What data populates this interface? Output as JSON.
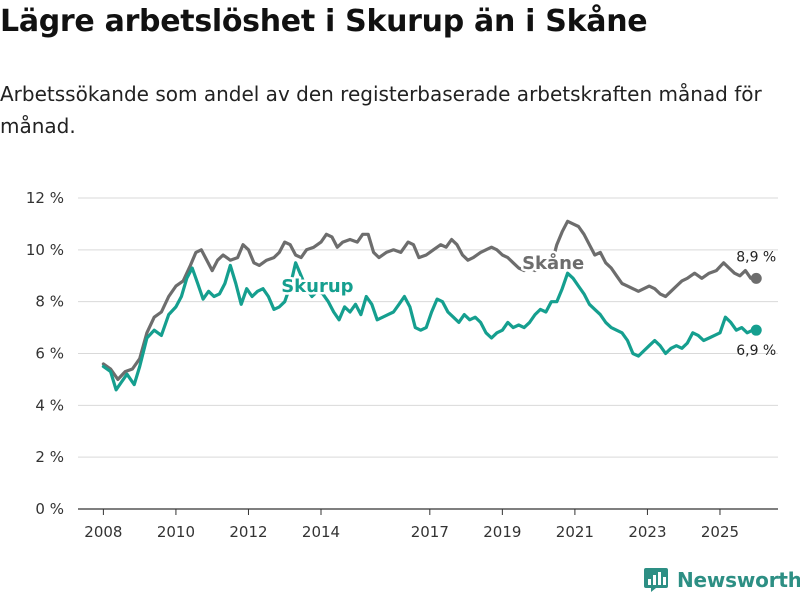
{
  "title": "Lägre arbetslöshet i Skurup än i Skåne",
  "subtitle": "Arbetssökande som andel av den registerbaserade arbetskraften månad för månad.",
  "brand": {
    "name": "Newsworthy",
    "icon": "bar-chart-logo-icon",
    "color": "#2d8f84"
  },
  "chart_data": {
    "type": "line",
    "title": "",
    "xlabel": "",
    "ylabel": "",
    "ylim": [
      0,
      12
    ],
    "xlim": [
      2007.3,
      2026.6
    ],
    "y_ticks": [
      0,
      2,
      4,
      6,
      8,
      10,
      12
    ],
    "y_tick_labels": [
      "0 %",
      "2 %",
      "4 %",
      "6 %",
      "8 %",
      "10 %",
      "12 %"
    ],
    "x_ticks": [
      2008,
      2010,
      2012,
      2014,
      2017,
      2019,
      2021,
      2023,
      2025
    ],
    "x_tick_labels": [
      "2008",
      "2010",
      "2012",
      "2014",
      "2017",
      "2019",
      "2021",
      "2023",
      "2025"
    ],
    "grid": true,
    "series": [
      {
        "name": "Skåne",
        "color": "#6d6d6d",
        "end_label": "8,9 %",
        "points": [
          [
            2008.0,
            5.6
          ],
          [
            2008.2,
            5.4
          ],
          [
            2008.4,
            5.0
          ],
          [
            2008.6,
            5.3
          ],
          [
            2008.8,
            5.4
          ],
          [
            2009.0,
            5.8
          ],
          [
            2009.2,
            6.8
          ],
          [
            2009.4,
            7.4
          ],
          [
            2009.6,
            7.6
          ],
          [
            2009.8,
            8.2
          ],
          [
            2010.0,
            8.6
          ],
          [
            2010.2,
            8.8
          ],
          [
            2010.4,
            9.4
          ],
          [
            2010.55,
            9.9
          ],
          [
            2010.7,
            10.0
          ],
          [
            2010.85,
            9.6
          ],
          [
            2011.0,
            9.2
          ],
          [
            2011.15,
            9.6
          ],
          [
            2011.3,
            9.8
          ],
          [
            2011.5,
            9.6
          ],
          [
            2011.7,
            9.7
          ],
          [
            2011.85,
            10.2
          ],
          [
            2012.0,
            10.0
          ],
          [
            2012.15,
            9.5
          ],
          [
            2012.3,
            9.4
          ],
          [
            2012.5,
            9.6
          ],
          [
            2012.7,
            9.7
          ],
          [
            2012.85,
            9.9
          ],
          [
            2013.0,
            10.3
          ],
          [
            2013.15,
            10.2
          ],
          [
            2013.3,
            9.8
          ],
          [
            2013.45,
            9.7
          ],
          [
            2013.6,
            10.0
          ],
          [
            2013.8,
            10.1
          ],
          [
            2014.0,
            10.3
          ],
          [
            2014.15,
            10.6
          ],
          [
            2014.3,
            10.5
          ],
          [
            2014.45,
            10.1
          ],
          [
            2014.6,
            10.3
          ],
          [
            2014.8,
            10.4
          ],
          [
            2015.0,
            10.3
          ],
          [
            2015.15,
            10.6
          ],
          [
            2015.3,
            10.6
          ],
          [
            2015.45,
            9.9
          ],
          [
            2015.6,
            9.7
          ],
          [
            2015.8,
            9.9
          ],
          [
            2016.0,
            10.0
          ],
          [
            2016.2,
            9.9
          ],
          [
            2016.4,
            10.3
          ],
          [
            2016.55,
            10.2
          ],
          [
            2016.7,
            9.7
          ],
          [
            2016.9,
            9.8
          ],
          [
            2017.1,
            10.0
          ],
          [
            2017.3,
            10.2
          ],
          [
            2017.45,
            10.1
          ],
          [
            2017.6,
            10.4
          ],
          [
            2017.75,
            10.2
          ],
          [
            2017.9,
            9.8
          ],
          [
            2018.05,
            9.6
          ],
          [
            2018.2,
            9.7
          ],
          [
            2018.4,
            9.9
          ],
          [
            2018.55,
            10.0
          ],
          [
            2018.7,
            10.1
          ],
          [
            2018.85,
            10.0
          ],
          [
            2019.0,
            9.8
          ],
          [
            2019.15,
            9.7
          ],
          [
            2019.3,
            9.5
          ],
          [
            2019.45,
            9.3
          ],
          [
            2019.6,
            9.2
          ],
          [
            2019.75,
            9.3
          ],
          [
            2019.9,
            9.2
          ],
          [
            2020.05,
            9.3
          ],
          [
            2020.2,
            9.5
          ],
          [
            2020.35,
            9.4
          ],
          [
            2020.5,
            10.2
          ],
          [
            2020.65,
            10.7
          ],
          [
            2020.8,
            11.1
          ],
          [
            2020.95,
            11.0
          ],
          [
            2021.1,
            10.9
          ],
          [
            2021.25,
            10.6
          ],
          [
            2021.4,
            10.2
          ],
          [
            2021.55,
            9.8
          ],
          [
            2021.7,
            9.9
          ],
          [
            2021.85,
            9.5
          ],
          [
            2022.0,
            9.3
          ],
          [
            2022.15,
            9.0
          ],
          [
            2022.3,
            8.7
          ],
          [
            2022.45,
            8.6
          ],
          [
            2022.6,
            8.5
          ],
          [
            2022.75,
            8.4
          ],
          [
            2022.9,
            8.5
          ],
          [
            2023.05,
            8.6
          ],
          [
            2023.2,
            8.5
          ],
          [
            2023.35,
            8.3
          ],
          [
            2023.5,
            8.2
          ],
          [
            2023.65,
            8.4
          ],
          [
            2023.8,
            8.6
          ],
          [
            2023.95,
            8.8
          ],
          [
            2024.1,
            8.9
          ],
          [
            2024.3,
            9.1
          ],
          [
            2024.5,
            8.9
          ],
          [
            2024.7,
            9.1
          ],
          [
            2024.9,
            9.2
          ],
          [
            2025.1,
            9.5
          ],
          [
            2025.25,
            9.3
          ],
          [
            2025.4,
            9.1
          ],
          [
            2025.55,
            9.0
          ],
          [
            2025.7,
            9.2
          ],
          [
            2025.85,
            8.9
          ],
          [
            2026.0,
            8.9
          ]
        ]
      },
      {
        "name": "Skurup",
        "color": "#159f8f",
        "end_label": "6,9 %",
        "points": [
          [
            2008.0,
            5.5
          ],
          [
            2008.2,
            5.3
          ],
          [
            2008.35,
            4.6
          ],
          [
            2008.5,
            4.9
          ],
          [
            2008.65,
            5.2
          ],
          [
            2008.85,
            4.8
          ],
          [
            2009.0,
            5.5
          ],
          [
            2009.2,
            6.6
          ],
          [
            2009.4,
            6.9
          ],
          [
            2009.6,
            6.7
          ],
          [
            2009.8,
            7.5
          ],
          [
            2010.0,
            7.8
          ],
          [
            2010.15,
            8.2
          ],
          [
            2010.3,
            8.9
          ],
          [
            2010.45,
            9.3
          ],
          [
            2010.6,
            8.7
          ],
          [
            2010.75,
            8.1
          ],
          [
            2010.9,
            8.4
          ],
          [
            2011.05,
            8.2
          ],
          [
            2011.2,
            8.3
          ],
          [
            2011.35,
            8.7
          ],
          [
            2011.5,
            9.4
          ],
          [
            2011.65,
            8.7
          ],
          [
            2011.8,
            7.9
          ],
          [
            2011.95,
            8.5
          ],
          [
            2012.1,
            8.2
          ],
          [
            2012.25,
            8.4
          ],
          [
            2012.4,
            8.5
          ],
          [
            2012.55,
            8.2
          ],
          [
            2012.7,
            7.7
          ],
          [
            2012.85,
            7.8
          ],
          [
            2013.0,
            8.0
          ],
          [
            2013.15,
            8.6
          ],
          [
            2013.3,
            9.5
          ],
          [
            2013.45,
            9.0
          ],
          [
            2013.6,
            8.5
          ],
          [
            2013.75,
            8.2
          ],
          [
            2013.9,
            8.4
          ],
          [
            2014.05,
            8.3
          ],
          [
            2014.2,
            8.0
          ],
          [
            2014.35,
            7.6
          ],
          [
            2014.5,
            7.3
          ],
          [
            2014.65,
            7.8
          ],
          [
            2014.8,
            7.6
          ],
          [
            2014.95,
            7.9
          ],
          [
            2015.1,
            7.5
          ],
          [
            2015.25,
            8.2
          ],
          [
            2015.4,
            7.9
          ],
          [
            2015.55,
            7.3
          ],
          [
            2015.7,
            7.4
          ],
          [
            2015.85,
            7.5
          ],
          [
            2016.0,
            7.6
          ],
          [
            2016.15,
            7.9
          ],
          [
            2016.3,
            8.2
          ],
          [
            2016.45,
            7.8
          ],
          [
            2016.6,
            7.0
          ],
          [
            2016.75,
            6.9
          ],
          [
            2016.9,
            7.0
          ],
          [
            2017.05,
            7.6
          ],
          [
            2017.2,
            8.1
          ],
          [
            2017.35,
            8.0
          ],
          [
            2017.5,
            7.6
          ],
          [
            2017.65,
            7.4
          ],
          [
            2017.8,
            7.2
          ],
          [
            2017.95,
            7.5
          ],
          [
            2018.1,
            7.3
          ],
          [
            2018.25,
            7.4
          ],
          [
            2018.4,
            7.2
          ],
          [
            2018.55,
            6.8
          ],
          [
            2018.7,
            6.6
          ],
          [
            2018.85,
            6.8
          ],
          [
            2019.0,
            6.9
          ],
          [
            2019.15,
            7.2
          ],
          [
            2019.3,
            7.0
          ],
          [
            2019.45,
            7.1
          ],
          [
            2019.6,
            7.0
          ],
          [
            2019.75,
            7.2
          ],
          [
            2019.9,
            7.5
          ],
          [
            2020.05,
            7.7
          ],
          [
            2020.2,
            7.6
          ],
          [
            2020.35,
            8.0
          ],
          [
            2020.5,
            8.0
          ],
          [
            2020.65,
            8.5
          ],
          [
            2020.8,
            9.1
          ],
          [
            2020.95,
            8.9
          ],
          [
            2021.1,
            8.6
          ],
          [
            2021.25,
            8.3
          ],
          [
            2021.4,
            7.9
          ],
          [
            2021.55,
            7.7
          ],
          [
            2021.7,
            7.5
          ],
          [
            2021.85,
            7.2
          ],
          [
            2022.0,
            7.0
          ],
          [
            2022.15,
            6.9
          ],
          [
            2022.3,
            6.8
          ],
          [
            2022.45,
            6.5
          ],
          [
            2022.6,
            6.0
          ],
          [
            2022.75,
            5.9
          ],
          [
            2022.9,
            6.1
          ],
          [
            2023.05,
            6.3
          ],
          [
            2023.2,
            6.5
          ],
          [
            2023.35,
            6.3
          ],
          [
            2023.5,
            6.0
          ],
          [
            2023.65,
            6.2
          ],
          [
            2023.8,
            6.3
          ],
          [
            2023.95,
            6.2
          ],
          [
            2024.1,
            6.4
          ],
          [
            2024.25,
            6.8
          ],
          [
            2024.4,
            6.7
          ],
          [
            2024.55,
            6.5
          ],
          [
            2024.7,
            6.6
          ],
          [
            2024.85,
            6.7
          ],
          [
            2025.0,
            6.8
          ],
          [
            2025.15,
            7.4
          ],
          [
            2025.3,
            7.2
          ],
          [
            2025.45,
            6.9
          ],
          [
            2025.6,
            7.0
          ],
          [
            2025.75,
            6.8
          ],
          [
            2025.9,
            6.9
          ],
          [
            2026.0,
            6.9
          ]
        ]
      }
    ],
    "inline_labels": [
      {
        "text": "Skurup",
        "series": "Skurup",
        "x": 2013.9,
        "y": 8.6
      },
      {
        "text": "Skåne",
        "series": "Skåne",
        "x": 2020.4,
        "y": 9.5
      }
    ]
  }
}
